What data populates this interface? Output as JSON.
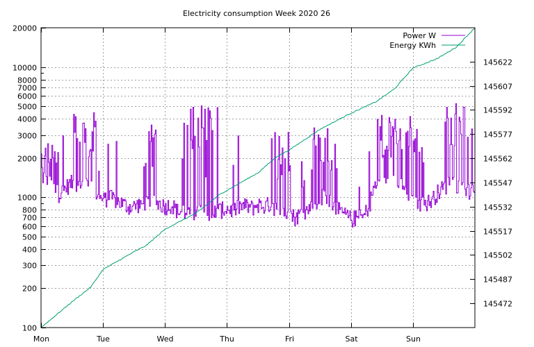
{
  "chart_data": {
    "type": "line",
    "title": "Electricity consumption Week 2020 26",
    "xlabel": "",
    "ylabel": "",
    "grid": true,
    "legend_position": "top-right",
    "x_ticks": [
      "Mon",
      "Tue",
      "Wed",
      "Thu",
      "Fri",
      "Sat",
      "Sun"
    ],
    "x_range_days": [
      0,
      7
    ],
    "y_left": {
      "scale": "log",
      "range": [
        100,
        20000
      ],
      "ticks": [
        100,
        200,
        300,
        400,
        500,
        600,
        700,
        800,
        1000,
        2000,
        3000,
        4000,
        5000,
        6000,
        7000,
        8000,
        10000,
        20000
      ],
      "tick_labels": [
        "100",
        "200",
        "300",
        "400",
        "500",
        "600",
        "700",
        "800",
        "1000",
        "2000",
        "3000",
        "4000",
        "5000",
        "6000",
        "7000",
        "8000",
        "10000",
        "20000"
      ]
    },
    "y_right": {
      "scale": "linear",
      "range": [
        145457,
        145643
      ],
      "ticks": [
        145472,
        145487,
        145502,
        145517,
        145532,
        145547,
        145562,
        145577,
        145592,
        145607,
        145622
      ],
      "tick_labels": [
        "145472",
        "145487",
        "145502",
        "145517",
        "145532",
        "145547",
        "145562",
        "145577",
        "145592",
        "145607",
        "145622"
      ]
    },
    "series": [
      {
        "name": "Power W",
        "axis": "left",
        "color": "#9400d3",
        "base_points": [
          [
            0.0,
            1500
          ],
          [
            0.1,
            1250
          ],
          [
            0.2,
            1150
          ],
          [
            0.3,
            1050
          ],
          [
            0.4,
            1200
          ],
          [
            0.5,
            1300
          ],
          [
            0.6,
            1150
          ],
          [
            0.7,
            1200
          ],
          [
            0.8,
            1250
          ],
          [
            0.9,
            1000
          ],
          [
            1.0,
            950
          ],
          [
            1.1,
            1000
          ],
          [
            1.2,
            950
          ],
          [
            1.3,
            900
          ],
          [
            1.4,
            850
          ],
          [
            1.5,
            850
          ],
          [
            1.6,
            900
          ],
          [
            1.7,
            880
          ],
          [
            1.8,
            900
          ],
          [
            1.9,
            900
          ],
          [
            2.0,
            850
          ],
          [
            2.1,
            880
          ],
          [
            2.2,
            780
          ],
          [
            2.3,
            780
          ],
          [
            2.4,
            720
          ],
          [
            2.5,
            740
          ],
          [
            2.6,
            780
          ],
          [
            2.7,
            760
          ],
          [
            2.8,
            780
          ],
          [
            2.9,
            800
          ],
          [
            3.0,
            820
          ],
          [
            3.1,
            790
          ],
          [
            3.2,
            850
          ],
          [
            3.3,
            860
          ],
          [
            3.4,
            830
          ],
          [
            3.5,
            880
          ],
          [
            3.6,
            850
          ],
          [
            3.7,
            900
          ],
          [
            3.8,
            800
          ],
          [
            3.9,
            780
          ],
          [
            4.0,
            750
          ],
          [
            4.1,
            700
          ],
          [
            4.2,
            760
          ],
          [
            4.3,
            800
          ],
          [
            4.4,
            900
          ],
          [
            4.5,
            1000
          ],
          [
            4.6,
            1050
          ],
          [
            4.7,
            900
          ],
          [
            4.8,
            800
          ],
          [
            4.9,
            730
          ],
          [
            5.0,
            680
          ],
          [
            5.1,
            700
          ],
          [
            5.2,
            700
          ],
          [
            5.3,
            900
          ],
          [
            5.4,
            1350
          ],
          [
            5.5,
            1300
          ],
          [
            5.6,
            1250
          ],
          [
            5.7,
            1300
          ],
          [
            5.8,
            1250
          ],
          [
            5.9,
            1000
          ],
          [
            6.0,
            900
          ],
          [
            6.1,
            880
          ],
          [
            6.2,
            900
          ],
          [
            6.3,
            950
          ],
          [
            6.4,
            1100
          ],
          [
            6.5,
            1200
          ],
          [
            6.6,
            1300
          ],
          [
            6.7,
            1250
          ],
          [
            6.8,
            1300
          ],
          [
            6.9,
            1100
          ],
          [
            7.0,
            1100
          ]
        ],
        "spike_regions": [
          {
            "from": 0.0,
            "to": 0.28,
            "peak": 2700
          },
          {
            "from": 0.5,
            "to": 0.95,
            "peak": 4500
          },
          {
            "from": 1.6,
            "to": 1.85,
            "peak": 3600
          },
          {
            "from": 2.3,
            "to": 2.85,
            "peak": 5200
          },
          {
            "from": 3.7,
            "to": 4.0,
            "peak": 3300
          },
          {
            "from": 4.35,
            "to": 4.8,
            "peak": 3500
          },
          {
            "from": 5.35,
            "to": 6.1,
            "peak": 4500
          },
          {
            "from": 6.5,
            "to": 6.95,
            "peak": 5400
          }
        ]
      },
      {
        "name": "Energy KWh",
        "axis": "right",
        "color": "#009e73",
        "points": [
          [
            0.0,
            145457
          ],
          [
            0.5,
            145473
          ],
          [
            0.8,
            145482
          ],
          [
            1.0,
            145493
          ],
          [
            1.5,
            145504
          ],
          [
            1.7,
            145508
          ],
          [
            2.0,
            145518
          ],
          [
            2.5,
            145528
          ],
          [
            2.9,
            145540
          ],
          [
            3.5,
            145553
          ],
          [
            3.8,
            145563
          ],
          [
            4.0,
            145567
          ],
          [
            4.5,
            145580
          ],
          [
            5.0,
            145590
          ],
          [
            5.4,
            145597
          ],
          [
            5.7,
            145605
          ],
          [
            6.0,
            145618
          ],
          [
            6.4,
            145624
          ],
          [
            6.7,
            145631
          ],
          [
            7.0,
            145643
          ]
        ]
      }
    ]
  }
}
